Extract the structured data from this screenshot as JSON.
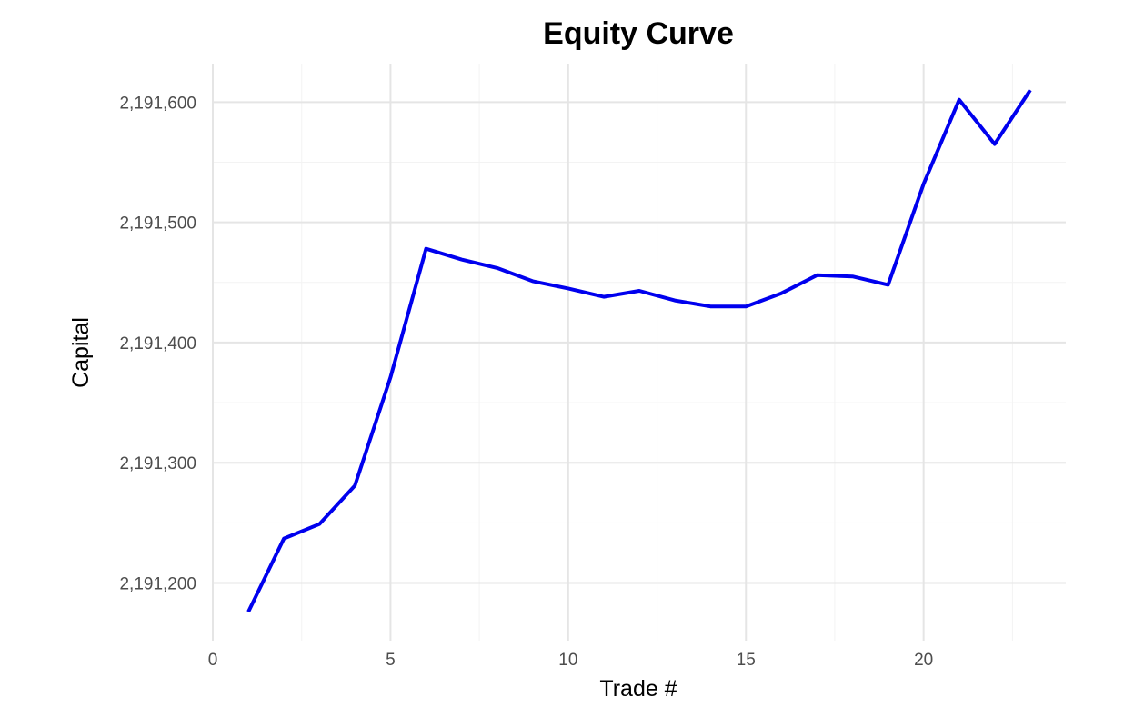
{
  "chart_data": {
    "type": "line",
    "title": "Equity Curve",
    "xlabel": "Trade #",
    "ylabel": "Capital",
    "xlim": [
      0,
      24
    ],
    "ylim": [
      2191152,
      2191632
    ],
    "x_ticks": [
      0,
      5,
      10,
      15,
      20
    ],
    "x_tick_labels": [
      "0",
      "5",
      "10",
      "15",
      "20"
    ],
    "y_ticks": [
      2191200,
      2191300,
      2191400,
      2191500,
      2191600
    ],
    "y_tick_labels": [
      "2,191,200",
      "2,191,300",
      "2,191,400",
      "2,191,500",
      "2,191,600"
    ],
    "grid": true,
    "legend": "none",
    "line_color": "#0000ee",
    "series": [
      {
        "x": [
          1,
          2,
          3,
          4,
          5,
          6,
          7,
          8,
          9,
          10,
          11,
          12,
          13,
          14,
          15,
          16,
          17,
          18,
          19,
          20,
          21,
          22,
          23
        ],
        "values": [
          2191176,
          2191237,
          2191249,
          2191281,
          2191371,
          2191478,
          2191469,
          2191462,
          2191451,
          2191445,
          2191438,
          2191443,
          2191435,
          2191430,
          2191430,
          2191441,
          2191456,
          2191455,
          2191448,
          2191532,
          2191602,
          2191565,
          2191610
        ]
      }
    ]
  }
}
